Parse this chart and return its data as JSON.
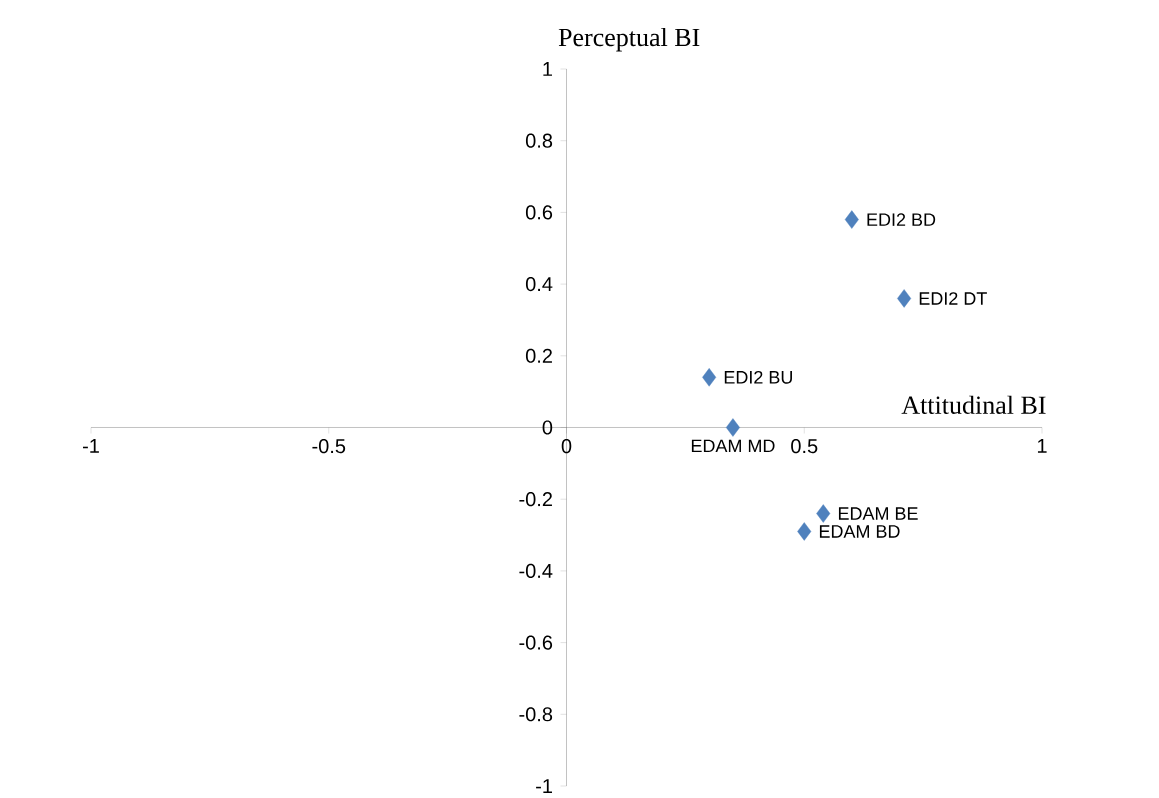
{
  "chart_data": {
    "type": "scatter",
    "xlabel": "Attitudinal BI",
    "ylabel": "Perceptual BI",
    "series": [
      {
        "color": "#4f81bd",
        "x": [
          0.6,
          0.71,
          0.3,
          0.35,
          0.54,
          0.5
        ],
        "values": [
          0.58,
          0.36,
          0.14,
          0.0,
          -0.24,
          -0.29
        ]
      }
    ],
    "annotations": [
      {
        "text": "EDI2 BD",
        "x": 0.6,
        "y": 0.58
      },
      {
        "text": "EDI2 DT",
        "x": 0.71,
        "y": 0.36
      },
      {
        "text": "EDI2 BU",
        "x": 0.3,
        "y": 0.14
      },
      {
        "text": "EDAM MD",
        "x": 0.35,
        "y": 0.0
      },
      {
        "text": "EDAM BE",
        "x": 0.54,
        "y": -0.24
      },
      {
        "text": "EDAM BD",
        "x": 0.5,
        "y": -0.29
      }
    ],
    "xlim": [
      -1,
      1
    ],
    "ylim": [
      -1,
      1
    ],
    "xticks": [
      -1,
      -0.5,
      0,
      0.5,
      1
    ],
    "yticks": [
      -1,
      -0.8,
      -0.6,
      -0.4,
      -0.2,
      0,
      0.2,
      0.4,
      0.6,
      0.8,
      1
    ],
    "marker": "diamond",
    "grid": false
  }
}
